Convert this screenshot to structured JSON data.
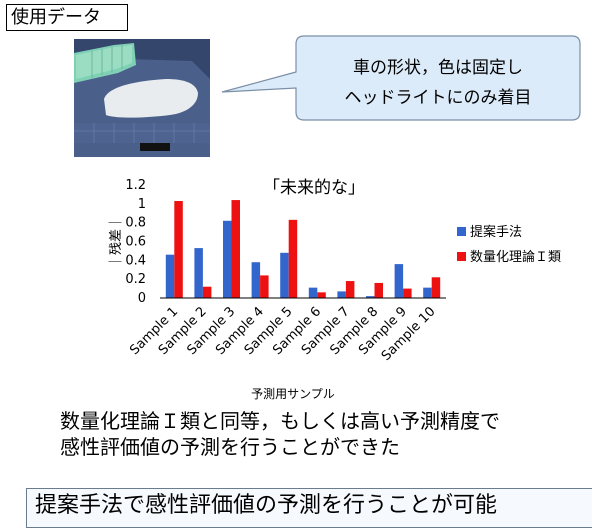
{
  "header": {
    "data_label": "使用データ"
  },
  "callout": {
    "line1": "車の形状，色は固定し",
    "line2": "ヘッドライトにのみ着目"
  },
  "chart_data": {
    "type": "bar",
    "title": "「未来的な」",
    "xlabel": "予測用サンプル",
    "ylabel": "｜残差｜",
    "ylim": [
      0,
      1.2
    ],
    "yticks": [
      "0",
      "0.2",
      "0.4",
      "0.6",
      "0.8",
      "1",
      "1.2"
    ],
    "categories": [
      "Sample 1",
      "Sample 2",
      "Sample 3",
      "Sample 4",
      "Sample 5",
      "Sample 6",
      "Sample 7",
      "Sample 8",
      "Sample 9",
      "Sample 10"
    ],
    "series": [
      {
        "name": "提案手法",
        "color": "#3366cc",
        "values": [
          0.46,
          0.53,
          0.82,
          0.38,
          0.48,
          0.11,
          0.07,
          0.02,
          0.36,
          0.11
        ]
      },
      {
        "name": "数量化理論Ｉ類",
        "color": "#ee1111",
        "values": [
          1.03,
          0.12,
          1.04,
          0.24,
          0.83,
          0.06,
          0.18,
          0.16,
          0.1,
          0.22
        ]
      }
    ],
    "legend_position": "right",
    "grid": false
  },
  "conclusion": {
    "line1": "数量化理論Ｉ類と同等，もしくは高い予測精度で",
    "line2": "感性評価値の予測を行うことができた"
  },
  "summary": {
    "text": "提案手法で感性評価値の予測を行うことが可能"
  }
}
